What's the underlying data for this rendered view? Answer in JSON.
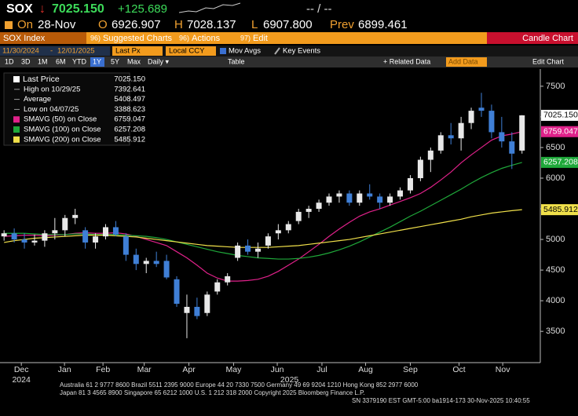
{
  "header": {
    "ticker": "SOX",
    "arrow": "↓",
    "last": "7025.150",
    "change": "+125.689",
    "bid_ask": "-- / --"
  },
  "quote": {
    "date_label": "On",
    "date": "28-Nov",
    "open_label": "O",
    "open": "6926.907",
    "high_label": "H",
    "high": "7028.137",
    "low_label": "L",
    "low": "6907.800",
    "prev_label": "Prev",
    "prev": "6899.461"
  },
  "toolbar": {
    "security": "SOX Index",
    "menus": [
      {
        "num": "96)",
        "label": "Suggested Charts"
      },
      {
        "num": "96)",
        "label": "Actions"
      },
      {
        "num": "97)",
        "label": "Edit"
      }
    ],
    "chart_name": "Candle Chart"
  },
  "controls": {
    "start": "11/30/2024",
    "separator": "-",
    "end": "12/01/2025",
    "field": "Last Px",
    "currency": "Local CCY",
    "studies": "Mov Avgs",
    "events": "Key Events"
  },
  "periods": {
    "items": [
      "1D",
      "3D",
      "1M",
      "6M",
      "YTD",
      "1Y",
      "5Y",
      "Max"
    ],
    "selected": 5,
    "frequency": "Daily ▾",
    "table": "Table",
    "related": "+ Related Data",
    "add": "Add Data",
    "edit": "Edit Chart"
  },
  "footer": {
    "lines": [
      "Australia 61 2 9777 8600 Brazil 5511 2395 9000 Europe 44 20 7330 7500 Germany 49 69 9204 1210 Hong Kong 852 2977 6000",
      "Japan 81 3 4565 8900       Singapore 65 6212 1000       U.S. 1 212 318 2000          Copyright 2025 Bloomberg Finance L.P.",
      "SN 3379190 EST  GMT-5:00 ba1914-173 30-Nov-2025 10:40:55"
    ]
  },
  "chart_data": {
    "type": "candlestick",
    "xlim": [
      -0.4,
      52.8
    ],
    "ylim": [
      2990,
      7780
    ],
    "yticks": [
      3500,
      4000,
      4500,
      5000,
      5500,
      6000,
      6500,
      7000,
      7500
    ],
    "xticks": [
      {
        "value": 1.7,
        "label": "Dec"
      },
      {
        "value": 5.95,
        "label": "Jan"
      },
      {
        "value": 9.74,
        "label": "Feb"
      },
      {
        "value": 13.8,
        "label": "Mar"
      },
      {
        "value": 18.2,
        "label": "Apr"
      },
      {
        "value": 22.6,
        "label": "May"
      },
      {
        "value": 26.9,
        "label": "Jun"
      },
      {
        "value": 31.3,
        "label": "Jul"
      },
      {
        "value": 35.6,
        "label": "Aug"
      },
      {
        "value": 40,
        "label": "Sep"
      },
      {
        "value": 44.8,
        "label": "Oct"
      },
      {
        "value": 49.1,
        "label": "Nov"
      }
    ],
    "year_ticks": [
      {
        "value": 1.7,
        "label": "2024"
      },
      {
        "value": 28.1,
        "label": "2025"
      }
    ],
    "up_color": "#e8e8e8",
    "down_color": "#3f7fd6",
    "open": [
      5050,
      5100,
      5000,
      4950,
      4980,
      5100,
      5150,
      5350,
      5150,
      4950,
      5050,
      5200,
      5050,
      4750,
      4600,
      4650,
      4650,
      4350,
      3800,
      3900,
      3800,
      4150,
      4300,
      4700,
      4900,
      4800,
      4900,
      5100,
      5150,
      5300,
      5450,
      5500,
      5600,
      5700,
      5750,
      5600,
      5750,
      5700,
      5600,
      5700,
      5800,
      6000,
      6300,
      6450,
      6700,
      6650,
      6900,
      7150,
      7100,
      6750,
      6600,
      6450
    ],
    "high": [
      5150,
      5180,
      5100,
      5080,
      5150,
      5350,
      5400,
      5500,
      5200,
      5100,
      5250,
      5300,
      5100,
      4850,
      4700,
      4800,
      4750,
      4400,
      4100,
      4050,
      4150,
      4350,
      4450,
      4950,
      5000,
      4950,
      5100,
      5250,
      5300,
      5500,
      5550,
      5650,
      5750,
      5800,
      5800,
      5800,
      5900,
      5750,
      5750,
      5850,
      6050,
      6350,
      6500,
      6750,
      6900,
      7000,
      7150,
      7392.641,
      7200,
      7000,
      6750,
      7028.137
    ],
    "low": [
      4980,
      4950,
      4850,
      4900,
      4880,
      5000,
      5050,
      5250,
      4850,
      4850,
      5000,
      5050,
      4650,
      4500,
      4450,
      4550,
      4350,
      3900,
      3388.623,
      3700,
      3750,
      4100,
      4250,
      4650,
      4750,
      4700,
      4850,
      5000,
      5100,
      5250,
      5350,
      5450,
      5550,
      5600,
      5550,
      5550,
      5650,
      5500,
      5550,
      5650,
      5750,
      5950,
      6100,
      6400,
      6550,
      6450,
      6800,
      7000,
      6650,
      6500,
      6150,
      6400
    ],
    "close": [
      5100,
      5000,
      4950,
      4980,
      5100,
      5150,
      5350,
      5400,
      4950,
      5050,
      5200,
      5080,
      4750,
      4600,
      4650,
      4600,
      4380,
      3950,
      3900,
      3750,
      4100,
      4300,
      4400,
      4900,
      4800,
      4850,
      5050,
      5150,
      5250,
      5450,
      5500,
      5600,
      5700,
      5750,
      5600,
      5750,
      5700,
      5600,
      5700,
      5800,
      6000,
      6300,
      6450,
      6700,
      6650,
      6900,
      7100,
      7100,
      6750,
      6600,
      6400,
      7025.15
    ],
    "stats": [
      {
        "label": "Last Price",
        "value": "7025.150"
      },
      {
        "label": "High on 10/29/25",
        "value": "7392.641"
      },
      {
        "label": "Average",
        "value": "5408.497"
      },
      {
        "label": "Low on 04/07/25",
        "value": "3388.623"
      }
    ],
    "series": [
      {
        "name": "SMAVG (50)  on Close",
        "color": "#e0218a",
        "last_label": "6759.047",
        "values": [
          5050,
          5060,
          5070,
          5070,
          5060,
          5070,
          5080,
          5100,
          5110,
          5100,
          5100,
          5110,
          5090,
          5050,
          5000,
          4950,
          4900,
          4800,
          4700,
          4580,
          4450,
          4370,
          4320,
          4320,
          4330,
          4350,
          4400,
          4480,
          4580,
          4680,
          4800,
          4920,
          5050,
          5170,
          5280,
          5380,
          5450,
          5500,
          5560,
          5620,
          5680,
          5750,
          5850,
          5970,
          6100,
          6250,
          6380,
          6500,
          6620,
          6690,
          6720,
          6759.047
        ]
      },
      {
        "name": "SMAVG (100)  on Close",
        "color": "#1fa83a",
        "last_label": "6257.208",
        "values": [
          5100,
          5100,
          5100,
          5090,
          5080,
          5080,
          5080,
          5090,
          5090,
          5080,
          5080,
          5080,
          5070,
          5060,
          5050,
          5030,
          5000,
          4960,
          4920,
          4880,
          4840,
          4800,
          4770,
          4740,
          4720,
          4700,
          4690,
          4680,
          4680,
          4690,
          4710,
          4740,
          4780,
          4830,
          4890,
          4960,
          5040,
          5120,
          5200,
          5290,
          5380,
          5460,
          5550,
          5640,
          5730,
          5820,
          5920,
          6010,
          6090,
          6160,
          6210,
          6257.208
        ]
      },
      {
        "name": "SMAVG (200)  on Close",
        "color": "#f0e04a",
        "last_label": "5485.912",
        "values": [
          4950,
          4980,
          5000,
          5020,
          5030,
          5040,
          5050,
          5060,
          5070,
          5070,
          5070,
          5060,
          5050,
          5040,
          5020,
          5000,
          4980,
          4960,
          4940,
          4920,
          4900,
          4890,
          4880,
          4870,
          4870,
          4870,
          4870,
          4880,
          4890,
          4900,
          4920,
          4940,
          4960,
          4980,
          5000,
          5030,
          5060,
          5090,
          5120,
          5150,
          5180,
          5210,
          5240,
          5270,
          5300,
          5330,
          5370,
          5400,
          5430,
          5450,
          5470,
          5485.912
        ]
      }
    ]
  }
}
